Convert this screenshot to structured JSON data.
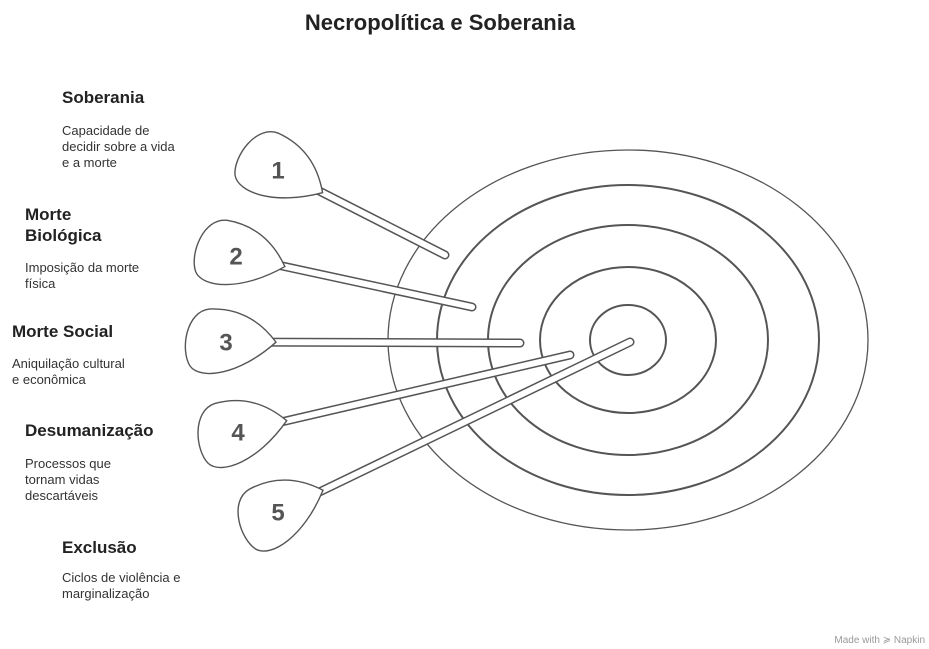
{
  "title": "Necropolítica e Soberania",
  "items": [
    {
      "number": "1",
      "title": [
        "Soberania"
      ],
      "description": [
        "Capacidade de",
        "decidir sobre a vida",
        "e a morte"
      ]
    },
    {
      "number": "2",
      "title": [
        "Morte",
        "Biológica"
      ],
      "description": [
        "Imposição da morte",
        "física"
      ]
    },
    {
      "number": "3",
      "title": [
        "Morte Social"
      ],
      "description": [
        "Aniquilação cultural",
        "e econômica"
      ]
    },
    {
      "number": "4",
      "title": [
        "Desumanização"
      ],
      "description": [
        "Processos que",
        "tornam vidas",
        "descartáveis"
      ]
    },
    {
      "number": "5",
      "title": [
        "Exclusão"
      ],
      "description": [
        "Ciclos de violência e",
        "marginalização"
      ]
    }
  ],
  "footer": "Made with ≽ Napkin"
}
